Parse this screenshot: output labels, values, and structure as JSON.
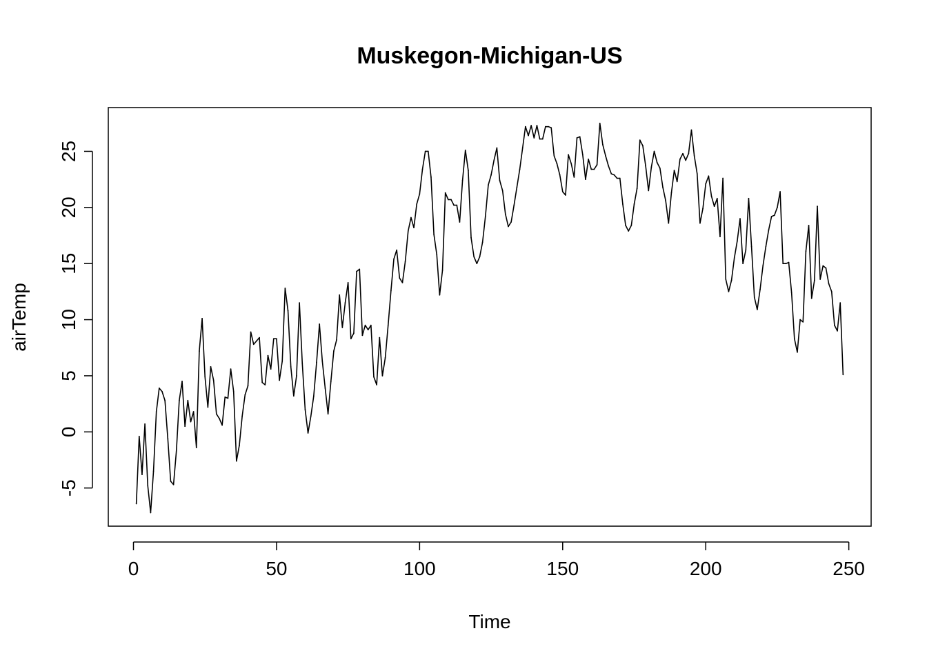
{
  "chart_data": {
    "type": "line",
    "title": "Muskegon-Michigan-US",
    "xlabel": "Time",
    "ylabel": "airTemp",
    "xlim": [
      -8.8,
      257.8
    ],
    "ylim": [
      -8.4,
      28.9
    ],
    "x_ticks": [
      0,
      50,
      100,
      150,
      200,
      250
    ],
    "y_ticks": [
      -5,
      0,
      5,
      10,
      15,
      20,
      25
    ],
    "grid": false,
    "legend": "none",
    "series": [
      {
        "color": "#000000",
        "x_start": 1,
        "values": [
          -6.4,
          -0.4,
          -3.8,
          0.7,
          -4.8,
          -7.2,
          -3.5,
          1.8,
          3.9,
          3.6,
          2.8,
          -0.6,
          -4.4,
          -4.7,
          -1.7,
          2.8,
          4.5,
          0.5,
          2.8,
          0.9,
          1.8,
          -1.4,
          7.2,
          10.1,
          4.9,
          2.2,
          5.8,
          4.6,
          1.6,
          1.2,
          0.6,
          3.1,
          3.0,
          5.6,
          3.6,
          -2.6,
          -1.2,
          1.4,
          3.3,
          4.1,
          8.9,
          7.8,
          8.1,
          8.4,
          4.4,
          4.2,
          6.8,
          5.6,
          8.3,
          8.3,
          4.6,
          6.3,
          12.8,
          10.8,
          5.8,
          3.2,
          5.0,
          11.5,
          6.1,
          2.0,
          -0.1,
          1.4,
          3.2,
          6.2,
          9.6,
          6.3,
          3.9,
          1.6,
          4.5,
          7.2,
          8.2,
          12.2,
          9.3,
          11.5,
          13.3,
          8.3,
          8.8,
          14.3,
          14.5,
          8.6,
          9.5,
          9.1,
          9.5,
          4.9,
          4.2,
          8.4,
          5.0,
          6.6,
          9.5,
          12.6,
          15.4,
          16.2,
          13.7,
          13.3,
          15.2,
          17.9,
          19.1,
          18.2,
          20.3,
          21.2,
          23.4,
          25.0,
          25.0,
          22.7,
          17.6,
          15.8,
          12.2,
          14.4,
          21.3,
          20.7,
          20.7,
          20.2,
          20.2,
          18.7,
          22.4,
          25.1,
          23.3,
          17.3,
          15.6,
          15.0,
          15.6,
          16.9,
          19.2,
          22.0,
          22.9,
          24.2,
          25.3,
          22.4,
          21.5,
          19.4,
          18.3,
          18.7,
          20.2,
          21.8,
          23.4,
          25.3,
          27.2,
          26.4,
          27.3,
          26.2,
          27.3,
          26.1,
          26.1,
          27.2,
          27.2,
          27.1,
          24.6,
          23.9,
          22.9,
          21.4,
          21.1,
          24.7,
          23.9,
          22.7,
          26.2,
          26.3,
          24.7,
          22.5,
          24.3,
          23.4,
          23.4,
          23.8,
          27.5,
          25.6,
          24.6,
          23.7,
          23.0,
          22.9,
          22.6,
          22.6,
          20.3,
          18.4,
          17.9,
          18.4,
          20.3,
          21.7,
          26.0,
          25.5,
          23.7,
          21.5,
          23.6,
          25.0,
          24.0,
          23.5,
          21.8,
          20.6,
          18.6,
          21.3,
          23.3,
          22.3,
          24.3,
          24.8,
          24.2,
          24.8,
          26.9,
          24.6,
          23.0,
          18.6,
          19.9,
          22.1,
          22.8,
          21.0,
          20.1,
          20.8,
          17.4,
          22.6,
          13.6,
          12.5,
          13.5,
          15.5,
          17.0,
          19.0,
          15.0,
          16.2,
          20.8,
          16.5,
          12.0,
          10.9,
          12.7,
          14.8,
          16.5,
          18.0,
          19.2,
          19.3,
          20.0,
          21.4,
          15.0,
          15.0,
          15.1,
          12.4,
          8.3,
          7.1,
          10.0,
          9.8,
          16.1,
          18.4,
          11.9,
          13.5,
          20.1,
          13.6,
          14.8,
          14.6,
          13.2,
          12.5,
          9.5,
          9.0,
          11.5,
          5.1
        ]
      }
    ]
  }
}
